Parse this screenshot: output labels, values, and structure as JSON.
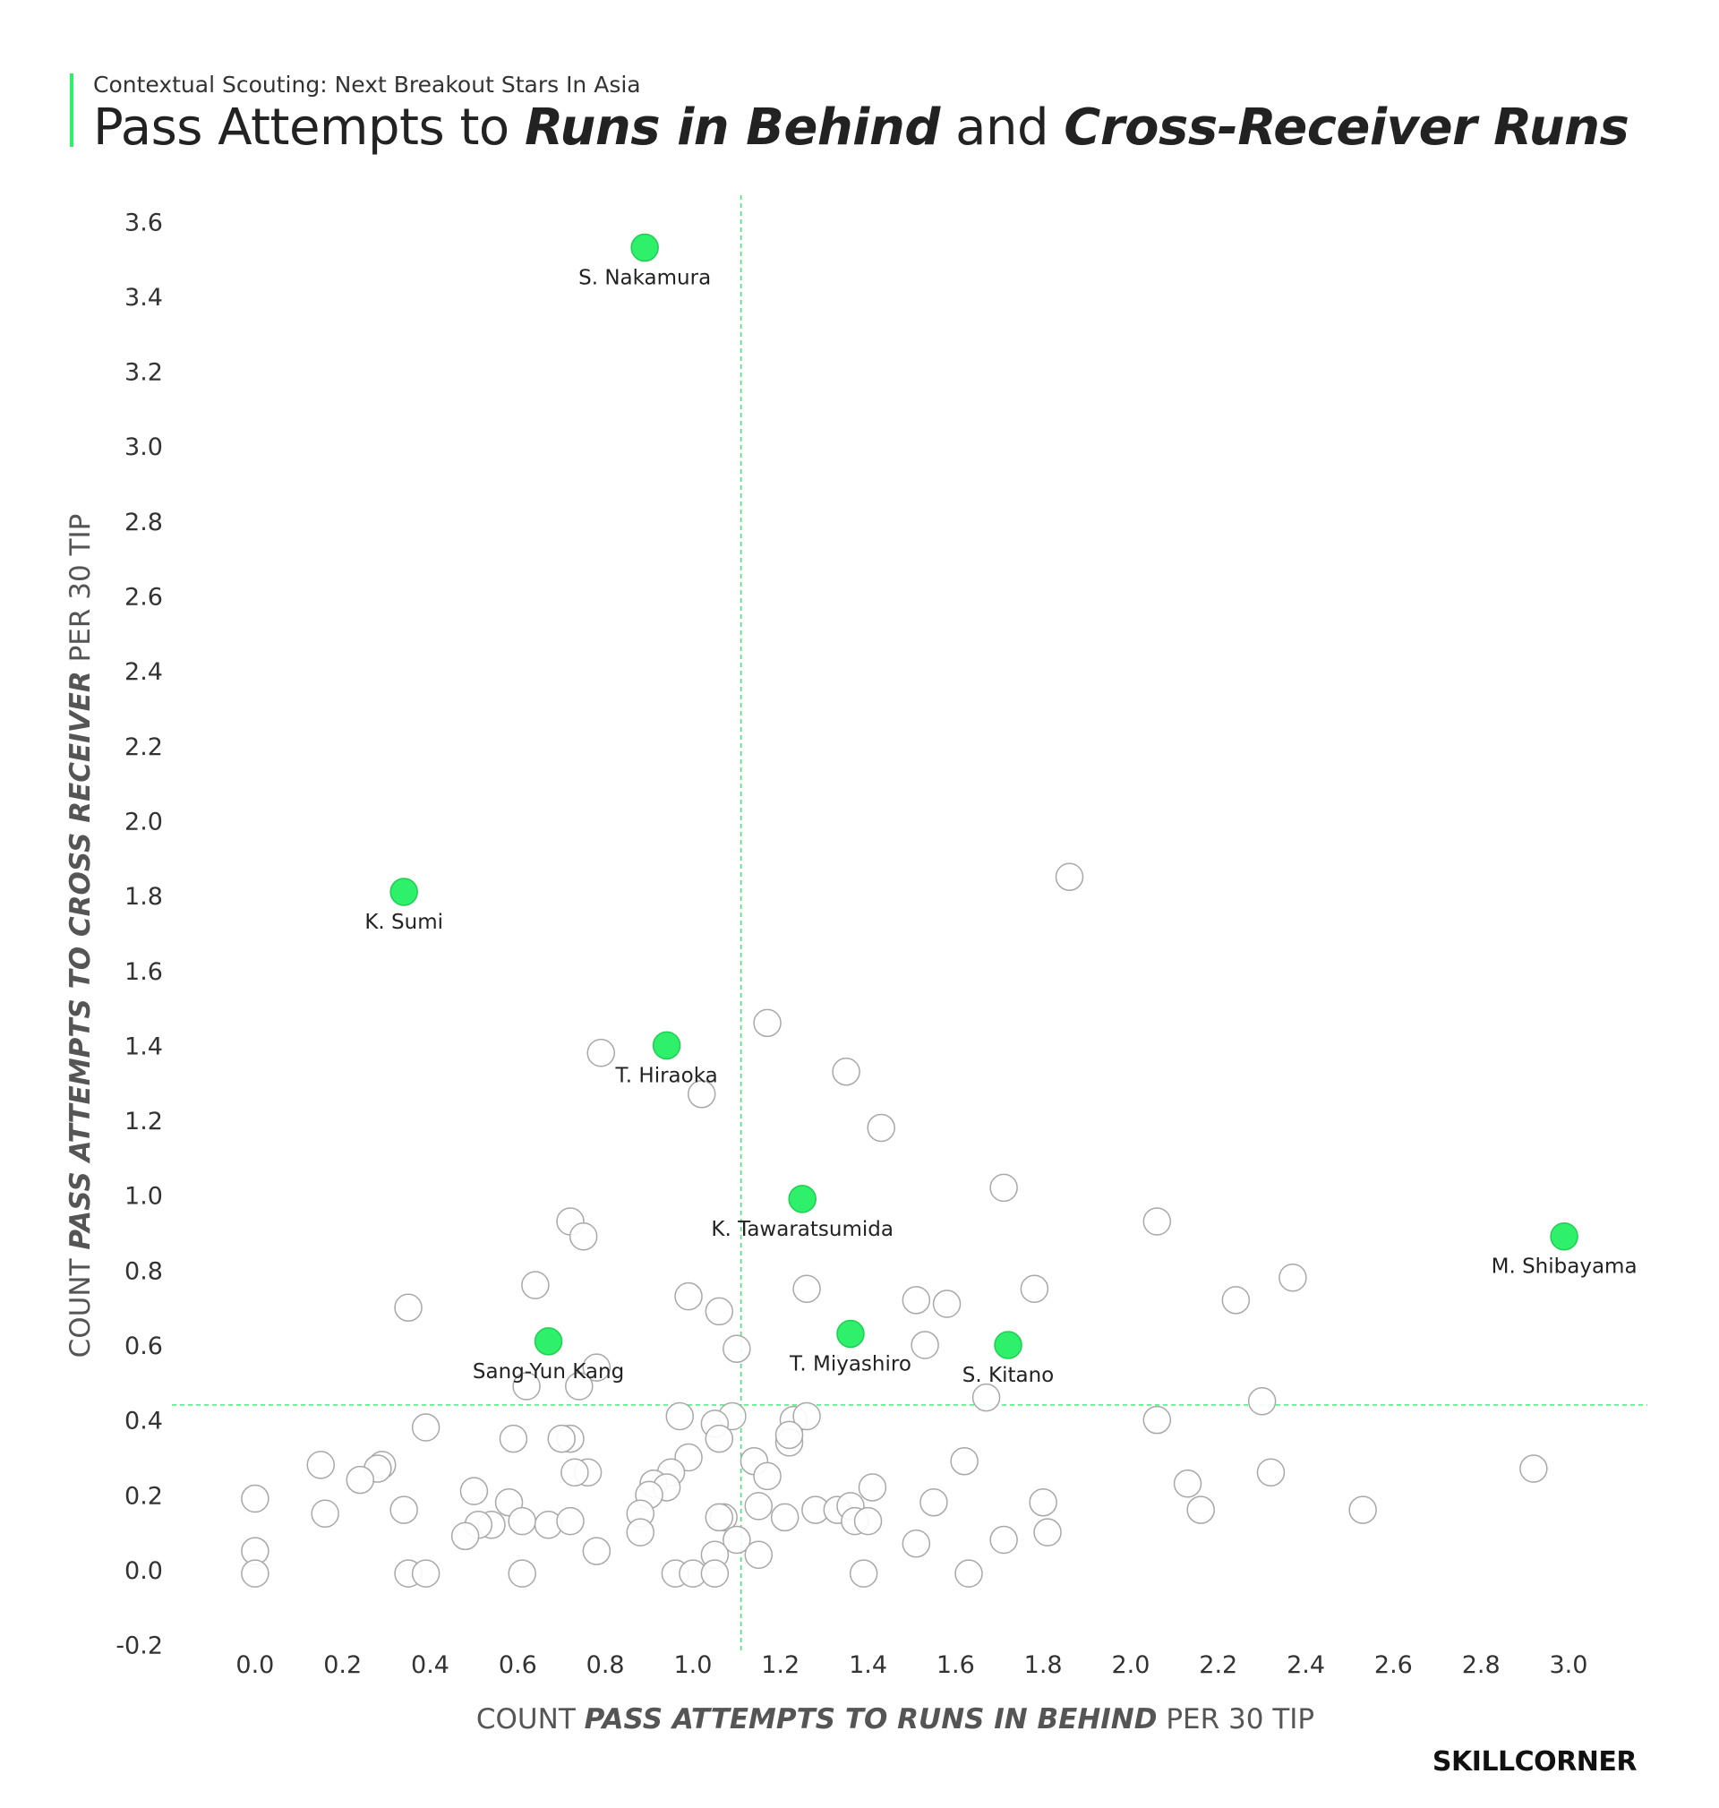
{
  "header": {
    "subtitle": "Contextual Scouting: Next Breakout Stars In Asia",
    "title_part1": "Pass Attempts to ",
    "title_em1": "Runs in Behind",
    "title_part2": " and ",
    "title_em2": "Cross-Receiver Runs"
  },
  "brand": {
    "logo": "SKILLCORNER",
    "accent_color": "#2ef06a"
  },
  "chart_data": {
    "type": "scatter",
    "xlabel_prefix": "COUNT ",
    "xlabel_em": "PASS ATTEMPTS TO RUNS IN BEHIND",
    "xlabel_suffix": " PER 30 TIP",
    "ylabel_prefix": "COUNT ",
    "ylabel_em": "PASS ATTEMPTS TO CROSS RECEIVER",
    "ylabel_suffix": " PER 30 TIP",
    "xlim": [
      -0.19,
      3.18
    ],
    "ylim": [
      -0.22,
      3.67
    ],
    "xticks": [
      "0.0",
      "0.2",
      "0.4",
      "0.6",
      "0.8",
      "1.0",
      "1.2",
      "1.4",
      "1.6",
      "1.8",
      "2.0",
      "2.2",
      "2.4",
      "2.6",
      "2.8",
      "3.0"
    ],
    "yticks": [
      "-0.2",
      "0.0",
      "0.2",
      "0.4",
      "0.6",
      "0.8",
      "1.0",
      "1.2",
      "1.4",
      "1.6",
      "1.8",
      "2.0",
      "2.2",
      "2.4",
      "2.6",
      "2.8",
      "3.0",
      "3.2",
      "3.4",
      "3.6"
    ],
    "reference_lines": {
      "x": 1.11,
      "y": 0.44
    },
    "highlight_color": "#2ef06a",
    "highlighted": [
      {
        "name": "S. Nakamura",
        "x": 0.89,
        "y": 3.53
      },
      {
        "name": "K. Sumi",
        "x": 0.34,
        "y": 1.81
      },
      {
        "name": "T. Hiraoka",
        "x": 0.94,
        "y": 1.4
      },
      {
        "name": "K. Tawaratsumida",
        "x": 1.25,
        "y": 0.99
      },
      {
        "name": "M. Shibayama",
        "x": 2.99,
        "y": 0.89
      },
      {
        "name": "T. Miyashiro",
        "x": 1.36,
        "y": 0.63
      },
      {
        "name": "S. Kitano",
        "x": 1.72,
        "y": 0.6
      },
      {
        "name": "Sang-Yun Kang",
        "x": 0.67,
        "y": 0.61
      }
    ],
    "others": [
      [
        1.86,
        1.85
      ],
      [
        1.17,
        1.46
      ],
      [
        0.79,
        1.38
      ],
      [
        1.35,
        1.33
      ],
      [
        1.02,
        1.27
      ],
      [
        1.43,
        1.18
      ],
      [
        1.71,
        1.02
      ],
      [
        2.06,
        0.93
      ],
      [
        0.72,
        0.93
      ],
      [
        0.75,
        0.89
      ],
      [
        2.37,
        0.78
      ],
      [
        0.64,
        0.76
      ],
      [
        1.26,
        0.75
      ],
      [
        1.78,
        0.75
      ],
      [
        0.99,
        0.73
      ],
      [
        1.51,
        0.72
      ],
      [
        1.58,
        0.71
      ],
      [
        2.24,
        0.72
      ],
      [
        0.35,
        0.7
      ],
      [
        1.06,
        0.69
      ],
      [
        1.53,
        0.6
      ],
      [
        1.1,
        0.59
      ],
      [
        0.78,
        0.54
      ],
      [
        0.62,
        0.49
      ],
      [
        0.74,
        0.49
      ],
      [
        1.67,
        0.46
      ],
      [
        2.3,
        0.45
      ],
      [
        0.97,
        0.41
      ],
      [
        1.09,
        0.41
      ],
      [
        1.23,
        0.4
      ],
      [
        1.26,
        0.41
      ],
      [
        2.06,
        0.4
      ],
      [
        1.05,
        0.39
      ],
      [
        0.39,
        0.38
      ],
      [
        0.72,
        0.35
      ],
      [
        0.7,
        0.35
      ],
      [
        0.59,
        0.35
      ],
      [
        1.06,
        0.35
      ],
      [
        1.22,
        0.34
      ],
      [
        1.22,
        0.36
      ],
      [
        0.99,
        0.3
      ],
      [
        1.14,
        0.29
      ],
      [
        1.62,
        0.29
      ],
      [
        0.15,
        0.28
      ],
      [
        0.29,
        0.28
      ],
      [
        0.28,
        0.27
      ],
      [
        0.76,
        0.26
      ],
      [
        0.73,
        0.26
      ],
      [
        0.95,
        0.26
      ],
      [
        1.17,
        0.25
      ],
      [
        2.32,
        0.26
      ],
      [
        2.92,
        0.27
      ],
      [
        0.24,
        0.24
      ],
      [
        0.91,
        0.23
      ],
      [
        0.94,
        0.22
      ],
      [
        0.5,
        0.21
      ],
      [
        1.41,
        0.22
      ],
      [
        2.13,
        0.23
      ],
      [
        0.0,
        0.19
      ],
      [
        0.58,
        0.18
      ],
      [
        0.9,
        0.2
      ],
      [
        1.15,
        0.17
      ],
      [
        1.28,
        0.16
      ],
      [
        1.33,
        0.16
      ],
      [
        1.36,
        0.17
      ],
      [
        1.55,
        0.18
      ],
      [
        1.8,
        0.18
      ],
      [
        0.16,
        0.15
      ],
      [
        0.34,
        0.16
      ],
      [
        0.88,
        0.15
      ],
      [
        1.07,
        0.14
      ],
      [
        1.06,
        0.14
      ],
      [
        0.61,
        0.13
      ],
      [
        0.67,
        0.12
      ],
      [
        0.72,
        0.13
      ],
      [
        0.54,
        0.12
      ],
      [
        0.51,
        0.12
      ],
      [
        1.21,
        0.14
      ],
      [
        1.37,
        0.13
      ],
      [
        1.4,
        0.13
      ],
      [
        2.16,
        0.16
      ],
      [
        2.53,
        0.16
      ],
      [
        0.48,
        0.09
      ],
      [
        0.88,
        0.1
      ],
      [
        1.1,
        0.08
      ],
      [
        1.51,
        0.07
      ],
      [
        1.71,
        0.08
      ],
      [
        1.81,
        0.1
      ],
      [
        0.0,
        0.05
      ],
      [
        1.05,
        0.04
      ],
      [
        1.15,
        0.04
      ],
      [
        0.78,
        0.05
      ],
      [
        0.0,
        -0.01
      ],
      [
        0.35,
        -0.01
      ],
      [
        0.39,
        -0.01
      ],
      [
        0.61,
        -0.01
      ],
      [
        0.96,
        -0.01
      ],
      [
        1.0,
        -0.01
      ],
      [
        1.05,
        -0.01
      ],
      [
        1.39,
        -0.01
      ],
      [
        1.63,
        -0.01
      ]
    ]
  }
}
